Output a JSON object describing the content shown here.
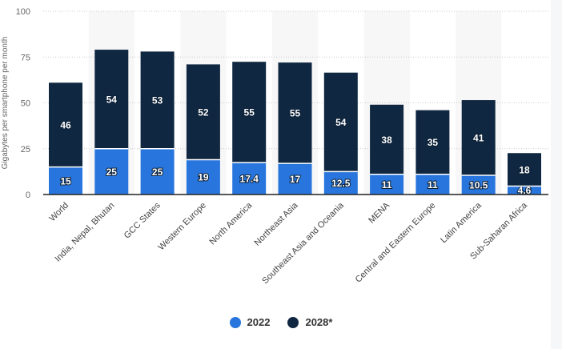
{
  "chart_data": {
    "type": "bar",
    "stacked": true,
    "title": "",
    "xlabel": "",
    "ylabel": "Gigabytes per smartphone per month",
    "ylim": [
      0,
      100
    ],
    "yticks": [
      0,
      25,
      50,
      75,
      100
    ],
    "grid": true,
    "legend_position": "bottom",
    "categories": [
      "World",
      "India, Nepal, Bhutan",
      "GCC States",
      "Western Europe",
      "North America",
      "Northeast Asia",
      "Southeast Asia and Oceania",
      "MENA",
      "Central and Eastern Europe",
      "Latin America",
      "Sub-Saharan Africa"
    ],
    "series": [
      {
        "name": "2022",
        "color": "#2876dd",
        "values": [
          15,
          25,
          25,
          19,
          17.4,
          17,
          12.5,
          11,
          11,
          10.5,
          4.6
        ]
      },
      {
        "name": "2028*",
        "color": "#0f2740",
        "values": [
          46,
          54,
          53,
          52,
          55,
          55,
          54,
          38,
          35,
          41,
          18
        ]
      }
    ]
  }
}
